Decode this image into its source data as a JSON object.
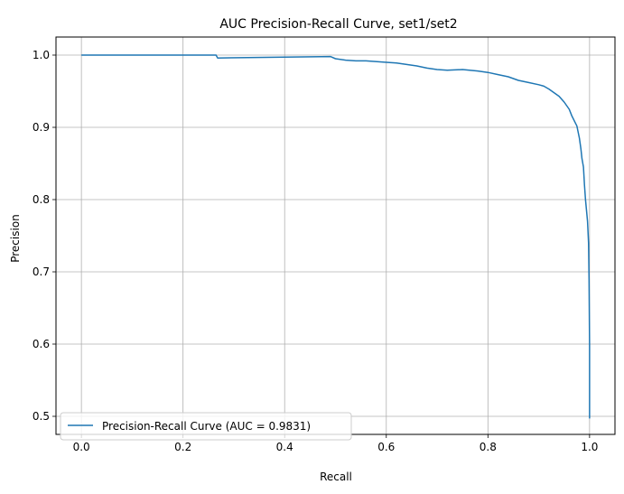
{
  "chart_data": {
    "type": "line",
    "title": "AUC Precision-Recall Curve, set1/set2",
    "xlabel": "Recall",
    "ylabel": "Precision",
    "xlim": [
      -0.05,
      1.05
    ],
    "ylim": [
      0.475,
      1.025
    ],
    "xticks": [
      0.0,
      0.2,
      0.4,
      0.6,
      0.8,
      1.0
    ],
    "xtick_labels": [
      "0.0",
      "0.2",
      "0.4",
      "0.6",
      "0.8",
      "1.0"
    ],
    "yticks": [
      0.5,
      0.6,
      0.7,
      0.8,
      0.9,
      1.0
    ],
    "ytick_labels": [
      "0.5",
      "0.6",
      "0.7",
      "0.8",
      "0.9",
      "1.0"
    ],
    "grid": true,
    "legend_position": "lower-left",
    "series": [
      {
        "name": "Precision-Recall Curve (AUC = 0.9831)",
        "color": "#1f77b4",
        "x": [
          0.0,
          0.265,
          0.268,
          0.49,
          0.5,
          0.52,
          0.54,
          0.56,
          0.6,
          0.62,
          0.64,
          0.66,
          0.68,
          0.7,
          0.72,
          0.75,
          0.78,
          0.8,
          0.82,
          0.84,
          0.86,
          0.88,
          0.9,
          0.91,
          0.92,
          0.93,
          0.94,
          0.95,
          0.96,
          0.965,
          0.97,
          0.975,
          0.98,
          0.983,
          0.985,
          0.988,
          0.99,
          0.992,
          0.994,
          0.996,
          0.998,
          0.999,
          1.0,
          1.0
        ],
        "y": [
          1.0,
          1.0,
          0.996,
          0.998,
          0.995,
          0.993,
          0.992,
          0.992,
          0.99,
          0.989,
          0.987,
          0.985,
          0.982,
          0.98,
          0.979,
          0.98,
          0.978,
          0.976,
          0.973,
          0.97,
          0.965,
          0.962,
          0.959,
          0.957,
          0.953,
          0.948,
          0.943,
          0.935,
          0.925,
          0.916,
          0.909,
          0.902,
          0.885,
          0.87,
          0.857,
          0.845,
          0.82,
          0.8,
          0.785,
          0.77,
          0.74,
          0.69,
          0.6,
          0.497
        ]
      }
    ]
  }
}
